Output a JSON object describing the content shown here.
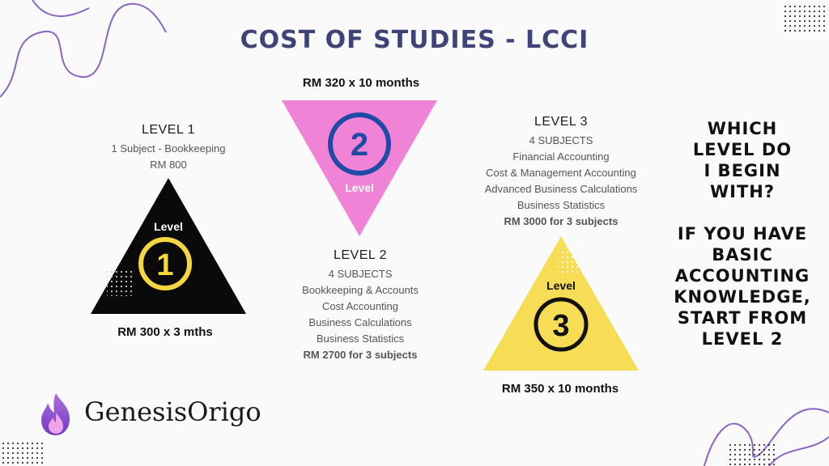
{
  "title": "COST OF STUDIES - LCCI",
  "level1": {
    "heading": "LEVEL 1",
    "lines": [
      "1 Subject - Bookkeeping",
      "RM 800"
    ],
    "price": "RM 300 x 3 mths",
    "badge_word": "Level",
    "badge_number": "1"
  },
  "level2": {
    "heading": "LEVEL 2",
    "lines": [
      "4 SUBJECTS",
      "Bookkeeping & Accounts",
      "Cost Accounting",
      "Business Calculations",
      "Business Statistics"
    ],
    "total": "RM 2700 for 3 subjects",
    "price": "RM 320 x 10 months",
    "badge_word": "Level",
    "badge_number": "2"
  },
  "level3": {
    "heading": "LEVEL 3",
    "lines": [
      "4 SUBJECTS",
      "Financial Accounting",
      "Cost & Management Accounting",
      "Advanced Business Calculations",
      "Business Statistics"
    ],
    "total": "RM 3000 for 3 subjects",
    "price": "RM 350 x 10 months",
    "badge_word": "Level",
    "badge_number": "3"
  },
  "side_text": {
    "question": [
      "WHICH",
      "LEVEL DO",
      "I BEGIN",
      "WITH?"
    ],
    "advice": [
      "IF YOU HAVE",
      "BASIC",
      "ACCOUNTING",
      "KNOWLEDGE,",
      "START FROM",
      "LEVEL 2"
    ]
  },
  "logo": {
    "name": "GenesisOrigo"
  },
  "colors": {
    "title": "#3f4478",
    "level1_triangle": "#0a0a0a",
    "level1_circle": "#f5d640",
    "level2_triangle": "#f083d6",
    "level2_circle": "#1f4aa6",
    "level3_triangle": "#f7dc55",
    "level3_circle": "#111111",
    "accent_line": "#8b63c4"
  }
}
